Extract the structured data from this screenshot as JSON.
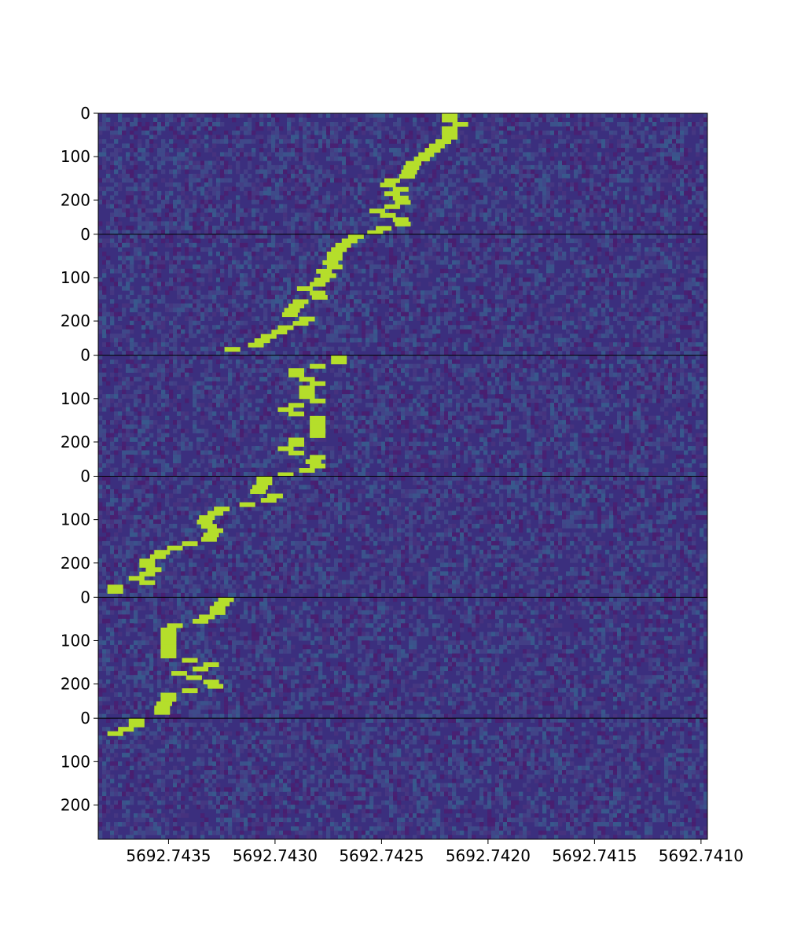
{
  "chart_data": {
    "type": "heatmap",
    "title": "",
    "xlabel": "",
    "ylabel": "",
    "colormap": "viridis",
    "colors": {
      "background": "#3b2f7e",
      "signal": "#b5de2b",
      "separator": "#000000"
    },
    "x": {
      "min": 5692.74383,
      "max": 5692.74097,
      "ticks": [
        5692.7435,
        5692.743,
        5692.7425,
        5692.742,
        5692.7415,
        5692.741
      ],
      "tick_labels": [
        "5692.7435",
        "5692.7430",
        "5692.7425",
        "5692.7420",
        "5692.7415",
        "5692.7410"
      ]
    },
    "y_per_panel": {
      "min": 0,
      "max": 279,
      "ticks": [
        0,
        100,
        200
      ],
      "tick_labels": [
        "0",
        "100",
        "200"
      ]
    },
    "panels": [
      {
        "name": "panel-1",
        "track": [
          [
            0,
            5692.74218
          ],
          [
            10,
            5692.74218
          ],
          [
            20,
            5692.74213
          ],
          [
            30,
            5692.74218
          ],
          [
            40,
            5692.74218
          ],
          [
            50,
            5692.74218
          ],
          [
            60,
            5692.74221
          ],
          [
            70,
            5692.74224
          ],
          [
            80,
            5692.74226
          ],
          [
            90,
            5692.74229
          ],
          [
            100,
            5692.74231
          ],
          [
            110,
            5692.74235
          ],
          [
            120,
            5692.74236
          ],
          [
            130,
            5692.74237
          ],
          [
            140,
            5692.74238
          ],
          [
            150,
            5692.74245
          ],
          [
            160,
            5692.74247
          ],
          [
            170,
            5692.74241
          ],
          [
            180,
            5692.74245
          ],
          [
            190,
            5692.74241
          ],
          [
            200,
            5692.7424
          ],
          [
            210,
            5692.74245
          ],
          [
            220,
            5692.74252
          ],
          [
            230,
            5692.74247
          ],
          [
            240,
            5692.74241
          ],
          [
            250,
            5692.7424
          ],
          [
            260,
            5692.74249
          ],
          [
            270,
            5692.74253
          ]
        ]
      },
      {
        "name": "panel-2",
        "track": [
          [
            0,
            5692.74262
          ],
          [
            10,
            5692.74265
          ],
          [
            20,
            5692.74268
          ],
          [
            30,
            5692.7427
          ],
          [
            40,
            5692.74272
          ],
          [
            50,
            5692.74272
          ],
          [
            60,
            5692.74274
          ],
          [
            70,
            5692.74272
          ],
          [
            80,
            5692.74277
          ],
          [
            90,
            5692.74275
          ],
          [
            100,
            5692.74278
          ],
          [
            110,
            5692.7428
          ],
          [
            120,
            5692.74286
          ],
          [
            130,
            5692.7428
          ],
          [
            140,
            5692.74279
          ],
          [
            150,
            5692.74288
          ],
          [
            160,
            5692.7429
          ],
          [
            170,
            5692.74292
          ],
          [
            180,
            5692.74293
          ],
          [
            190,
            5692.74285
          ],
          [
            200,
            5692.74288
          ],
          [
            210,
            5692.74295
          ],
          [
            220,
            5692.74298
          ],
          [
            230,
            5692.74303
          ],
          [
            240,
            5692.74306
          ],
          [
            250,
            5692.74309
          ],
          [
            260,
            5692.7432
          ]
        ]
      },
      {
        "name": "panel-3",
        "track": [
          [
            0,
            5692.7427
          ],
          [
            10,
            5692.7427
          ],
          [
            20,
            5692.7428
          ],
          [
            30,
            5692.7429
          ],
          [
            40,
            5692.7429
          ],
          [
            50,
            5692.74285
          ],
          [
            60,
            5692.7428
          ],
          [
            70,
            5692.74285
          ],
          [
            80,
            5692.74285
          ],
          [
            90,
            5692.74285
          ],
          [
            100,
            5692.7428
          ],
          [
            110,
            5692.7429
          ],
          [
            120,
            5692.74295
          ],
          [
            130,
            5692.7429
          ],
          [
            140,
            5692.7428
          ],
          [
            150,
            5692.7428
          ],
          [
            160,
            5692.7428
          ],
          [
            170,
            5692.7428
          ],
          [
            180,
            5692.7428
          ],
          [
            190,
            5692.7429
          ],
          [
            200,
            5692.7429
          ],
          [
            210,
            5692.74295
          ],
          [
            220,
            5692.7429
          ],
          [
            230,
            5692.7428
          ],
          [
            240,
            5692.74282
          ],
          [
            250,
            5692.7428
          ],
          [
            260,
            5692.74285
          ],
          [
            270,
            5692.74295
          ]
        ]
      },
      {
        "name": "panel-4",
        "track": [
          [
            0,
            5692.74305
          ],
          [
            10,
            5692.74305
          ],
          [
            20,
            5692.74307
          ],
          [
            30,
            5692.74308
          ],
          [
            40,
            5692.743
          ],
          [
            50,
            5692.74303
          ],
          [
            60,
            5692.74313
          ],
          [
            70,
            5692.74325
          ],
          [
            80,
            5692.74328
          ],
          [
            90,
            5692.74332
          ],
          [
            100,
            5692.74333
          ],
          [
            110,
            5692.74331
          ],
          [
            120,
            5692.74328
          ],
          [
            130,
            5692.7433
          ],
          [
            140,
            5692.74331
          ],
          [
            150,
            5692.7434
          ],
          [
            160,
            5692.74347
          ],
          [
            170,
            5692.74353
          ],
          [
            180,
            5692.74355
          ],
          [
            190,
            5692.7436
          ],
          [
            200,
            5692.7436
          ],
          [
            210,
            5692.74357
          ],
          [
            220,
            5692.7436
          ],
          [
            230,
            5692.74365
          ],
          [
            240,
            5692.7436
          ],
          [
            250,
            5692.74375
          ],
          [
            260,
            5692.74375
          ]
        ]
      },
      {
        "name": "panel-5",
        "track": [
          [
            0,
            5692.74323
          ],
          [
            10,
            5692.74325
          ],
          [
            20,
            5692.74327
          ],
          [
            30,
            5692.74327
          ],
          [
            40,
            5692.74332
          ],
          [
            50,
            5692.74335
          ],
          [
            60,
            5692.74347
          ],
          [
            70,
            5692.7435
          ],
          [
            80,
            5692.7435
          ],
          [
            90,
            5692.7435
          ],
          [
            100,
            5692.7435
          ],
          [
            110,
            5692.7435
          ],
          [
            120,
            5692.7435
          ],
          [
            130,
            5692.7435
          ],
          [
            140,
            5692.7434
          ],
          [
            150,
            5692.7433
          ],
          [
            160,
            5692.74335
          ],
          [
            170,
            5692.74345
          ],
          [
            180,
            5692.74338
          ],
          [
            190,
            5692.7433
          ],
          [
            200,
            5692.74328
          ],
          [
            210,
            5692.7434
          ],
          [
            220,
            5692.7435
          ],
          [
            230,
            5692.7435
          ],
          [
            240,
            5692.74352
          ],
          [
            250,
            5692.74353
          ],
          [
            260,
            5692.74353
          ]
        ]
      },
      {
        "name": "panel-6",
        "track": [
          [
            0,
            5692.74365
          ],
          [
            10,
            5692.74365
          ],
          [
            20,
            5692.7437
          ],
          [
            30,
            5692.74375
          ]
        ]
      }
    ]
  }
}
